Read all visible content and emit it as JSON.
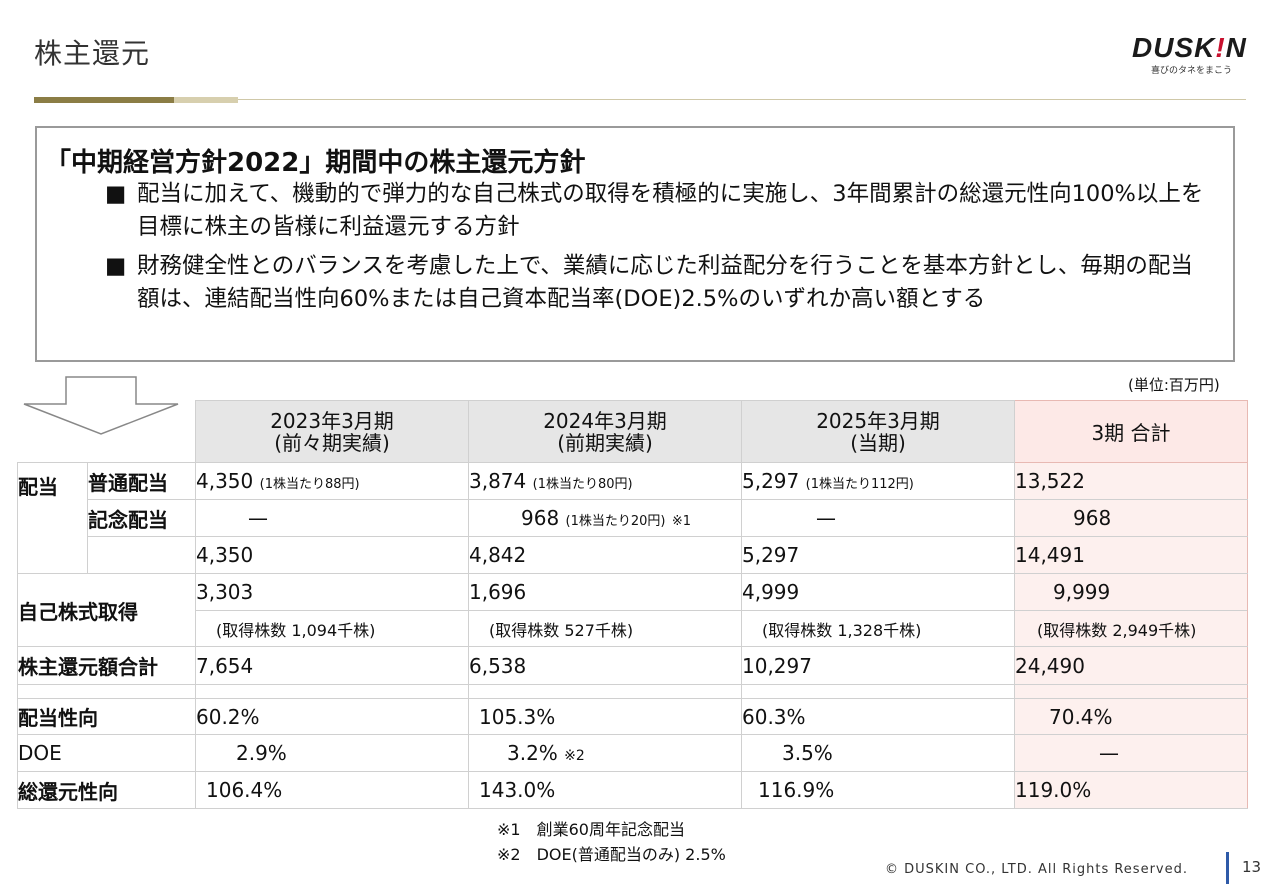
{
  "page": {
    "title": "株主還元",
    "page_number": "13",
    "copyright": "© DUSKIN CO., LTD. All Rights Reserved."
  },
  "logo": {
    "main_prefix": "DUSK",
    "main_bang": "!",
    "main_suffix": "N",
    "tagline": "喜びのタネをまこう"
  },
  "policy": {
    "heading": "「中期経営方針2022」期間中の株主還元方針",
    "bullet_symbol": "■",
    "bullets": [
      "配当に加えて、機動的で弾力的な自己株式の取得を積極的に実施し、3年間累計の総還元性向100%以上を目標に株主の皆様に利益還元する方針",
      "財務健全性とのバランスを考慮した上で、業績に応じた利益配分を行うことを基本方針とし、毎期の配当額は、連結配当性向60%または自己資本配当率(DOE)2.5%のいずれか高い額とする"
    ]
  },
  "unit_label": "(単位:百万円)",
  "table": {
    "columns": [
      {
        "line1": "2023年3月期",
        "line2": "(前々期実績)"
      },
      {
        "line1": "2024年3月期",
        "line2": "(前期実績)"
      },
      {
        "line1": "2025年3月期",
        "line2": "(当期)"
      },
      {
        "line1": "3期 合計",
        "line2": ""
      }
    ],
    "dividend_label": "配当",
    "ordinary": {
      "label": "普通配当",
      "values": [
        "4,350",
        "3,874",
        "5,297",
        "13,522"
      ],
      "per_share": [
        "(1株当たり88円)",
        "(1株当たり80円)",
        "(1株当たり112円)"
      ]
    },
    "commemorative": {
      "label": "記念配当",
      "values": [
        "—",
        "968",
        "—",
        "968"
      ],
      "per_share": [
        "(1株当たり20円)"
      ],
      "note_mark": "※1"
    },
    "dividend_subtotal": [
      "4,350",
      "4,842",
      "5,297",
      "14,491"
    ],
    "buyback": {
      "label": "自己株式取得",
      "values": [
        "3,303",
        "1,696",
        "4,999",
        "9,999"
      ],
      "shares": [
        "(取得株数 1,094千株)",
        "(取得株数 527千株)",
        "(取得株数 1,328千株)",
        "(取得株数 2,949千株)"
      ]
    },
    "total_return": {
      "label": "株主還元額合計",
      "values": [
        "7,654",
        "6,538",
        "10,297",
        "24,490"
      ]
    },
    "payout": {
      "label": "配当性向",
      "values": [
        "60.2%",
        "105.3%",
        "60.3%",
        "70.4%"
      ]
    },
    "doe": {
      "label": "DOE",
      "values": [
        "2.9%",
        "3.2%",
        "3.5%",
        "—"
      ],
      "note_mark": "※2"
    },
    "total_payout": {
      "label": "総還元性向",
      "values": [
        "106.4%",
        "143.0%",
        "116.9%",
        "119.0%"
      ]
    }
  },
  "footnotes": [
    "※1　創業60周年記念配当",
    "※2　DOE(普通配当のみ) 2.5%"
  ]
}
